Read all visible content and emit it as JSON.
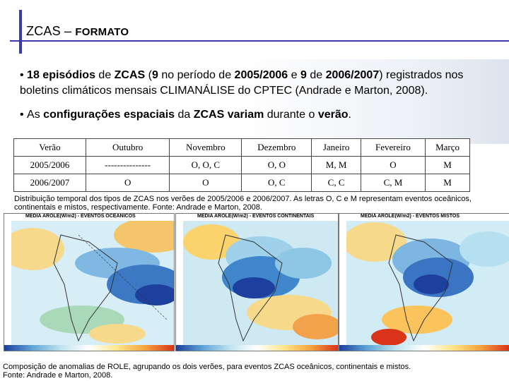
{
  "header": {
    "title_main": "ZCAS –",
    "title_small": "FORMATO"
  },
  "bullets": {
    "b1_part1": "18 episódios",
    "b1_part2": " de ",
    "b1_part3": "ZCAS",
    "b1_part4": " (",
    "b1_part5": "9",
    "b1_part6": " no período de ",
    "b1_part7": "2005/2006",
    "b1_part8": " e ",
    "b1_part9": "9",
    "b1_part10": " de ",
    "b1_part11": "2006/2007",
    "b1_part12": ") registrados nos boletins climáticos mensais CLIMANÁLISE do CPTEC (Andrade e Marton, 2008).",
    "b2_part1": "As ",
    "b2_part2": "configurações espaciais",
    "b2_part3": " da ",
    "b2_part4": "ZCAS variam",
    "b2_part5": " durante o ",
    "b2_part6": "verão",
    "b2_part7": "."
  },
  "table": {
    "headers": [
      "Verão",
      "Outubro",
      "Novembro",
      "Dezembro",
      "Janeiro",
      "Fevereiro",
      "Março"
    ],
    "rows": [
      [
        "2005/2006",
        "---------------",
        "O, O, C",
        "O, O",
        "M, M",
        "O",
        "M"
      ],
      [
        "2006/2007",
        "O",
        "O",
        "O, C",
        "C, C",
        "C, M",
        "M"
      ]
    ]
  },
  "caption_table": "Distribuição temporal dos tipos de ZCAS nos verões de 2005/2006 e 2006/2007. As letras O, C e M representam eventos oceânicos, continentais e mistos, respectivamente. Fonte: Andrade e Marton, 2008.",
  "maps": [
    {
      "title": "MEDIA AROLE(W/m2) - EVENTOS OCEANICOS"
    },
    {
      "title": "MEDIA AROLE(W/m2) - EVENTOS CONTINENTAIS"
    },
    {
      "title": "MEDIA AROLE(W/m2) - EVENTOS MISTOS"
    }
  ],
  "caption_maps_line1": "Composição de anomalias de ROLE, agrupando os dois verões, para eventos ZCAS oceânicos, continentais e mistos.",
  "caption_maps_line2": "Fonte: Andrade e Marton, 2008.",
  "colors": {
    "accent_bar": "#3b3bb0",
    "negative_anomaly": "#1d3f9e",
    "positive_anomaly": "#d9331a",
    "neutral": "#cfe6f4"
  }
}
